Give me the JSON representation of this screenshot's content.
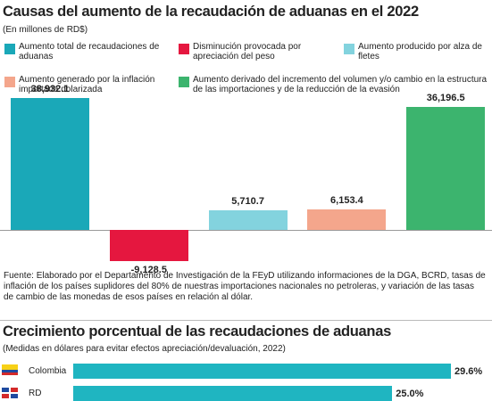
{
  "chart_data": [
    {
      "type": "bar",
      "title": "Causas del aumento de la recaudación de aduanas en el 2022",
      "subtitle": "(En millones de  RD$)",
      "categories": [
        "Aumento total de recaudaciones de aduanas",
        "Disminución provocada por apreciación del peso",
        "Aumento producido por alza de fletes",
        "Aumento generado por la inflación importada dolarizada",
        "Aumento derivado del incremento del volumen y/o cambio en la estructura de las importaciones y de  la reducción de la evasión"
      ],
      "values": [
        38932.1,
        -9128.5,
        5710.7,
        6153.4,
        36196.5
      ],
      "value_labels": [
        "38,932.1",
        "-9,128.5",
        "5,710.7",
        "6,153.4",
        "36,196.5"
      ],
      "colors": [
        "#1aa8b8",
        "#e5173f",
        "#83d3de",
        "#f4a68c",
        "#3cb46e"
      ],
      "source": "Fuente: Elaborado por el Departamento de Investigación de la FEyD utilizando informaciones de la DGA, BCRD, tasas de inflación de los países suplidores del 80% de nuestras importaciones nacionales no petroleras,  y variación de las tasas de cambio de las monedas de esos países en relación al dólar."
    },
    {
      "type": "barh",
      "title": "Crecimiento porcentual de las recaudaciones de aduanas",
      "subtitle": "(Medidas en dólares para evitar efectos apreciación/devaluación, 2022)",
      "categories": [
        "Colombia",
        "RD"
      ],
      "values": [
        29.6,
        25.0
      ],
      "value_labels": [
        "29.6%",
        "25.0%"
      ],
      "color": "#1fb5c1"
    }
  ]
}
